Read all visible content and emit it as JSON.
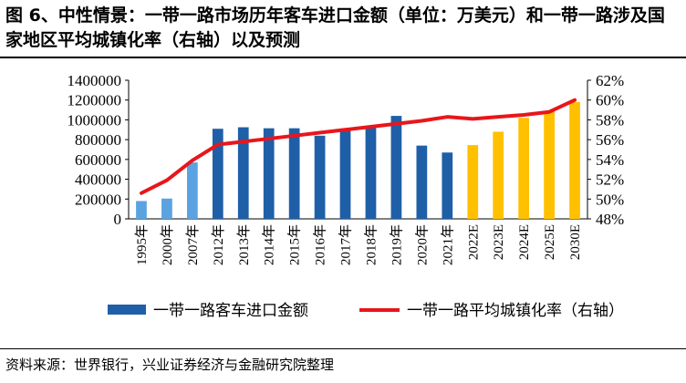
{
  "title": "图 6、中性情景：一带一路市场历年客车进口金额（单位：万美元）和一带一路涉及国家地区平均城镇化率（右轴）以及预测",
  "source": "资料来源：世界银行，兴业证券经济与金融研究院整理",
  "chart_data": {
    "type": "bar",
    "categories": [
      "1995年",
      "2000年",
      "2007年",
      "2012年",
      "2013年",
      "2014年",
      "2015年",
      "2016年",
      "2017年",
      "2018年",
      "2019年",
      "2020年",
      "2021年",
      "2022E",
      "2023E",
      "2024E",
      "2025E",
      "2030E"
    ],
    "series": [
      {
        "name": "一带一路客车进口金额",
        "type": "bar",
        "axis": "left",
        "values": [
          180000,
          205000,
          570000,
          910000,
          925000,
          915000,
          915000,
          840000,
          890000,
          925000,
          1040000,
          740000,
          670000,
          745000,
          880000,
          1020000,
          1090000,
          1180000
        ],
        "colors": [
          "#5ba3e0",
          "#5ba3e0",
          "#5ba3e0",
          "#1f5fa8",
          "#1f5fa8",
          "#1f5fa8",
          "#1f5fa8",
          "#1f5fa8",
          "#1f5fa8",
          "#1f5fa8",
          "#1f5fa8",
          "#1f5fa8",
          "#1f5fa8",
          "#ffc000",
          "#ffc000",
          "#ffc000",
          "#ffc000",
          "#ffc000"
        ]
      },
      {
        "name": "一带一路平均城镇化率（右轴）",
        "type": "line",
        "axis": "right",
        "color": "#e8161b",
        "values": [
          50.6,
          51.9,
          53.9,
          55.5,
          55.8,
          56.1,
          56.4,
          56.7,
          57.0,
          57.3,
          57.6,
          57.9,
          58.3,
          58.1,
          58.3,
          58.5,
          58.8,
          60.0
        ]
      }
    ],
    "yLeft": {
      "min": 0,
      "max": 1400000,
      "step": 200000,
      "ticks": [
        "0",
        "200000",
        "400000",
        "600000",
        "800000",
        "1000000",
        "1200000",
        "1400000"
      ]
    },
    "yRight": {
      "min": 48,
      "max": 62,
      "step": 2,
      "ticks": [
        "48%",
        "50%",
        "52%",
        "54%",
        "56%",
        "58%",
        "60%",
        "62%"
      ]
    },
    "legend": {
      "position": "bottom",
      "items": [
        "一带一路客车进口金额",
        "一带一路平均城镇化率（右轴）"
      ]
    },
    "grid": false
  }
}
